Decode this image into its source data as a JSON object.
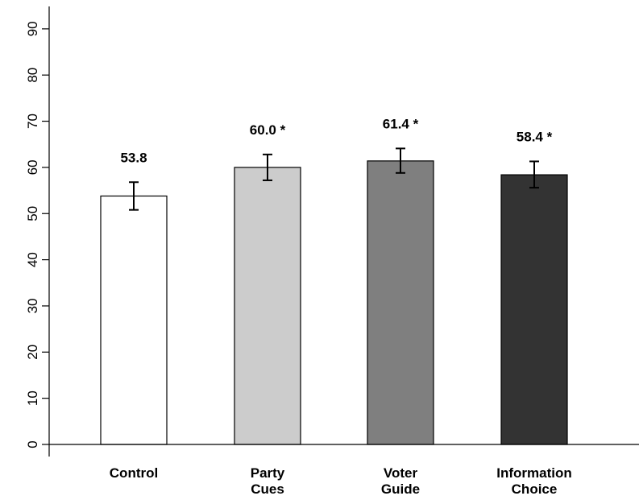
{
  "chart_data": {
    "type": "bar",
    "title": "",
    "xlabel": "",
    "ylabel": "",
    "ylim": [
      0,
      95
    ],
    "yticks": [
      0,
      10,
      20,
      30,
      40,
      50,
      60,
      70,
      80,
      90
    ],
    "grid": false,
    "legend": "none",
    "categories": [
      [
        "Control"
      ],
      [
        "Party",
        "Cues"
      ],
      [
        "Voter",
        "Guide"
      ],
      [
        "Information",
        "Choice"
      ]
    ],
    "values": [
      53.8,
      60.0,
      61.4,
      58.4
    ],
    "error_low": [
      50.8,
      57.2,
      58.8,
      55.6
    ],
    "error_high": [
      56.8,
      62.8,
      64.1,
      61.3
    ],
    "value_labels": [
      "53.8",
      "60.0 *",
      "61.4 *",
      "58.4 *"
    ],
    "colors": [
      "#ffffff",
      "#cccccc",
      "#7f7f7f",
      "#333333"
    ],
    "bar_edge_color": "#000000"
  }
}
